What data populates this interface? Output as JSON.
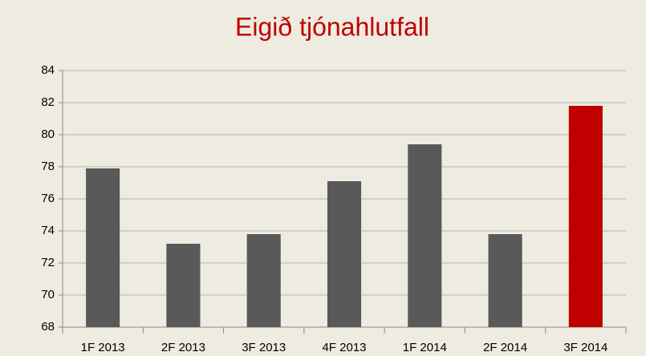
{
  "chart_data": {
    "type": "bar",
    "title": "Eigið tjónahlutfall",
    "categories": [
      "1F 2013",
      "2F 2013",
      "3F 2013",
      "4F 2013",
      "1F 2014",
      "2F 2014",
      "3F 2014"
    ],
    "values": [
      77.9,
      73.2,
      73.8,
      77.1,
      79.4,
      73.8,
      81.8
    ],
    "colors": [
      "#595959",
      "#595959",
      "#595959",
      "#595959",
      "#595959",
      "#595959",
      "#c00000"
    ],
    "ylim": [
      68,
      84
    ],
    "yticks": [
      68,
      70,
      72,
      74,
      76,
      78,
      80,
      82,
      84
    ],
    "grid": true
  }
}
